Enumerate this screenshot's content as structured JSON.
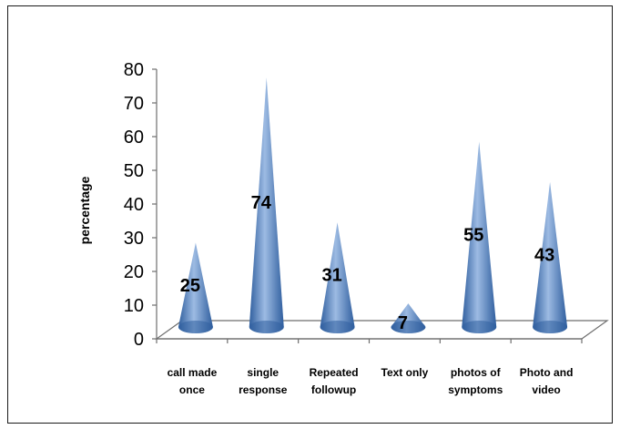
{
  "chart_data": {
    "type": "bar",
    "subtype": "3d-cone",
    "categories": [
      [
        "call made",
        "once"
      ],
      [
        "single",
        "response"
      ],
      [
        "Repeated",
        "followup"
      ],
      [
        "Text only"
      ],
      [
        "photos of",
        "symptoms"
      ],
      [
        "Photo and",
        "video"
      ]
    ],
    "values": [
      25,
      74,
      31,
      7,
      55,
      43
    ],
    "data_labels": [
      "25",
      "74",
      "31",
      "7",
      "55",
      "43"
    ],
    "ylabel": "percentage",
    "ylim": [
      0,
      80
    ],
    "yticks": [
      "0",
      "10",
      "20",
      "30",
      "40",
      "50",
      "60",
      "70",
      "80"
    ],
    "grid": false,
    "legend": "none",
    "colors": {
      "cone_dark": "#2f5e9e",
      "cone_mid": "#4f81bd",
      "cone_light": "#9dbbe3",
      "axis": "#6e6e6e"
    }
  }
}
